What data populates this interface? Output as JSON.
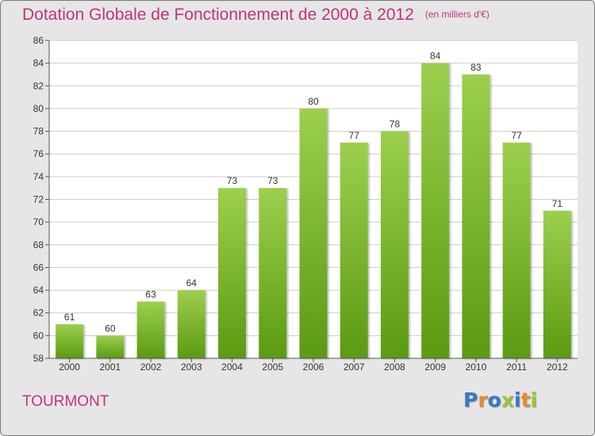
{
  "header": {
    "title": "Dotation Globale de Fonctionnement de 2000 à 2012",
    "subtitle": "(en milliers d'€)"
  },
  "footer": {
    "commune": "TOURMONT",
    "logo": "Proxiti"
  },
  "colors": {
    "title": "#c0337e",
    "bar_top": "#9ccf4e",
    "bar_bottom": "#5b9a12",
    "background": "#e6e6e6",
    "plot_background": "#ffffff",
    "grid": "#cccccc",
    "logo_letters": [
      "#3a78c2",
      "#e8892b",
      "#3a78c2",
      "#9cc63b",
      "#3a78c2",
      "#e8892b",
      "#9cc63b"
    ]
  },
  "chart_data": {
    "type": "bar",
    "title": "Dotation Globale de Fonctionnement de 2000 à 2012",
    "subtitle": "(en milliers d'€)",
    "categories": [
      "2000",
      "2001",
      "2002",
      "2003",
      "2004",
      "2005",
      "2006",
      "2007",
      "2008",
      "2009",
      "2010",
      "2011",
      "2012"
    ],
    "values": [
      61,
      60,
      63,
      64,
      73,
      73,
      80,
      77,
      78,
      84,
      83,
      77,
      71
    ],
    "ylim": [
      58,
      86
    ],
    "yticks": [
      58,
      60,
      62,
      64,
      66,
      68,
      70,
      72,
      74,
      76,
      78,
      80,
      82,
      84,
      86
    ],
    "grid": true,
    "data_labels": true
  }
}
